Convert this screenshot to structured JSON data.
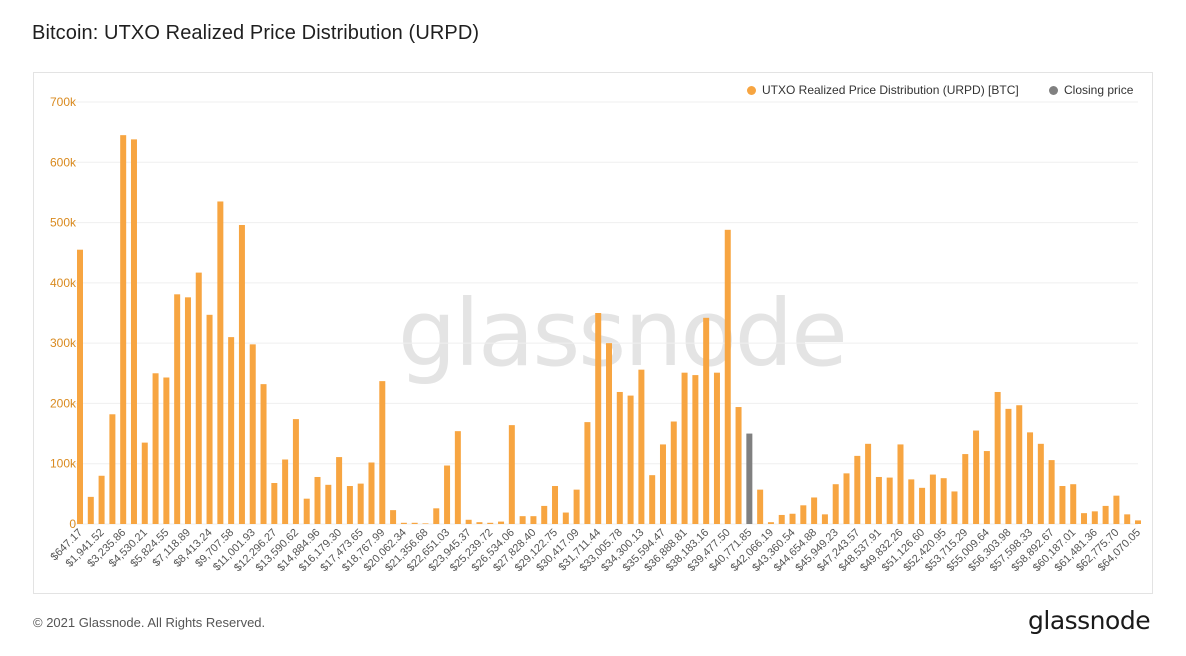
{
  "title": "Bitcoin: UTXO Realized Price Distribution (URPD)",
  "footer": "© 2021 Glassnode. All Rights Reserved.",
  "brand": "glassnode",
  "watermark": "glassnode",
  "colors": {
    "series": "#f7a541",
    "closing": "#808080",
    "axis_text": "#d98a1f",
    "grid": "#efefef"
  },
  "chart_data": {
    "type": "bar",
    "ylim": [
      0,
      700000
    ],
    "yticks": [
      0,
      100000,
      200000,
      300000,
      400000,
      500000,
      600000,
      700000
    ],
    "ytick_labels": [
      "0",
      "100k",
      "200k",
      "300k",
      "400k",
      "500k",
      "600k",
      "700k"
    ],
    "legend_position": "top-right",
    "xtick_labels": [
      "$647.17",
      "$1,941.52",
      "$3,235.86",
      "$4,530.21",
      "$5,824.55",
      "$7,118.89",
      "$8,413.24",
      "$9,707.58",
      "$11,001.93",
      "$12,296.27",
      "$13,590.62",
      "$14,884.96",
      "$16,179.30",
      "$17,473.65",
      "$18,767.99",
      "$20,062.34",
      "$21,356.68",
      "$22,651.03",
      "$23,945.37",
      "$25,239.72",
      "$26,534.06",
      "$27,828.40",
      "$29,122.75",
      "$30,417.09",
      "$31,711.44",
      "$33,005.78",
      "$34,300.13",
      "$35,594.47",
      "$36,888.81",
      "$38,183.16",
      "$39,477.50",
      "$40,771.85",
      "$42,066.19",
      "$43,360.54",
      "$44,654.88",
      "$45,949.23",
      "$47,243.57",
      "$48,537.91",
      "$49,832.26",
      "$51,126.60",
      "$52,420.95",
      "$53,715.29",
      "$55,009.64",
      "$56,303.98",
      "$57,598.33",
      "$58,892.67",
      "$60,187.01",
      "$61,481.36",
      "$62,775.70",
      "$64,070.05"
    ],
    "series": [
      {
        "name": "UTXO Realized Price Distribution (URPD) [BTC]",
        "values": [
          455000,
          45000,
          80000,
          182000,
          645000,
          638000,
          135000,
          250000,
          243000,
          381000,
          376000,
          417000,
          347000,
          535000,
          310000,
          496000,
          298000,
          232000,
          68000,
          107000,
          174000,
          42000,
          78000,
          65000,
          111000,
          63000,
          67000,
          102000,
          237000,
          23000,
          2000,
          2000,
          1000,
          26000,
          97000,
          154000,
          7000,
          3000,
          2000,
          4000,
          164000,
          13000,
          13000,
          30000,
          63000,
          19000,
          57000,
          169000,
          350000,
          300000,
          219000,
          213000,
          256000,
          81000,
          132000,
          170000,
          251000,
          247000,
          342000,
          251000,
          488000,
          194000,
          150000,
          57000,
          3000,
          15000,
          17000,
          31000,
          44000,
          16000,
          66000,
          84000,
          113000,
          133000,
          78000,
          77000,
          132000,
          74000,
          60000,
          82000,
          76000,
          54000,
          116000,
          155000,
          121000,
          219000,
          191000,
          197000,
          152000,
          133000,
          106000,
          63000,
          66000,
          18000,
          21000,
          30000,
          47000,
          16000,
          6000
        ]
      },
      {
        "name": "Closing price",
        "index": 62
      }
    ]
  }
}
